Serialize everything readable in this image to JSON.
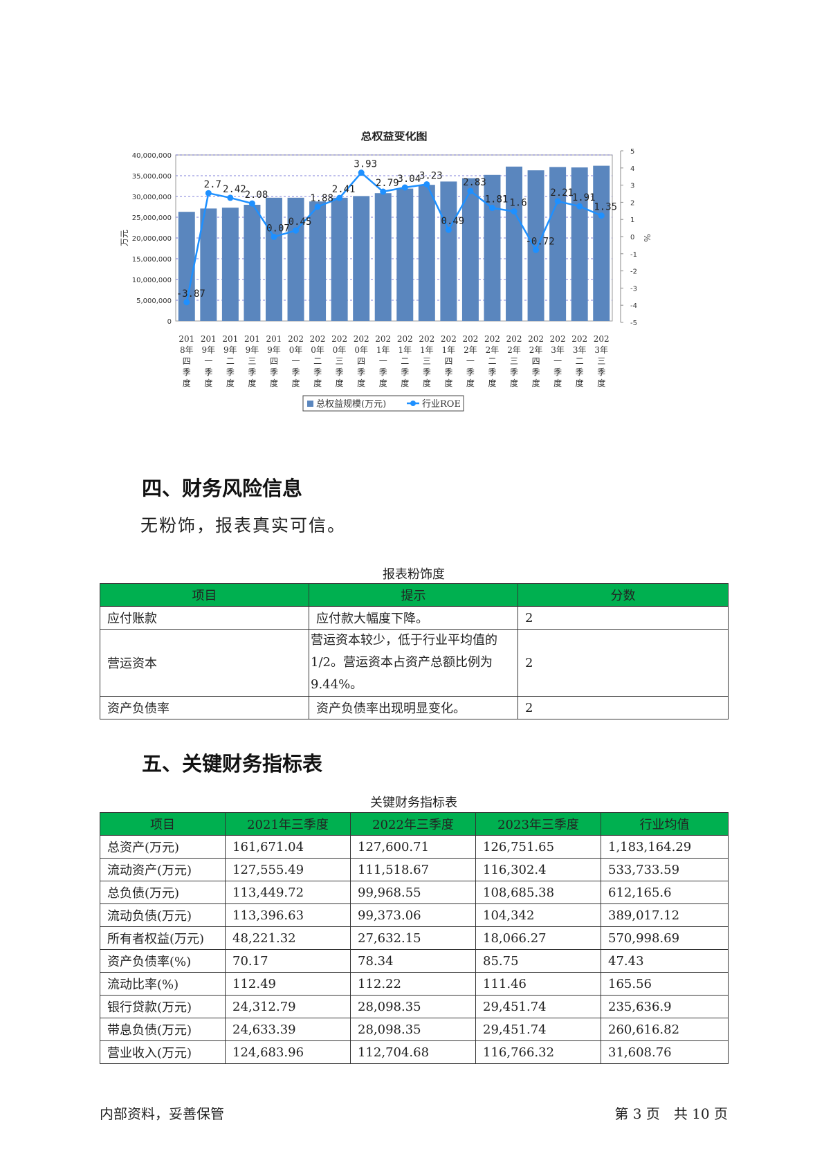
{
  "chart_data": {
    "type": "bar",
    "title": "总权益变化图",
    "ylabel": "万元",
    "y2label": "%",
    "ylim": [
      0,
      40000000
    ],
    "y2lim": [
      -5,
      5
    ],
    "yticks": [
      "0",
      "5,000,000",
      "10,000,000",
      "15,000,000",
      "20,000,000",
      "25,000,000",
      "30,000,000",
      "35,000,000",
      "40,000,000"
    ],
    "y2ticks": [
      "-5",
      "-4",
      "-3",
      "-2",
      "-1",
      "0",
      "1",
      "2",
      "3",
      "4",
      "5"
    ],
    "grid": true,
    "legend_position": "bottom",
    "categories": [
      [
        "201",
        "8年",
        "四",
        "季",
        "度"
      ],
      [
        "201",
        "9年",
        "一",
        "季",
        "度"
      ],
      [
        "201",
        "9年",
        "二",
        "季",
        "度"
      ],
      [
        "201",
        "9年",
        "三",
        "季",
        "度"
      ],
      [
        "201",
        "9年",
        "四",
        "季",
        "度"
      ],
      [
        "202",
        "0年",
        "一",
        "季",
        "度"
      ],
      [
        "202",
        "0年",
        "二",
        "季",
        "度"
      ],
      [
        "202",
        "0年",
        "三",
        "季",
        "度"
      ],
      [
        "202",
        "0年",
        "四",
        "季",
        "度"
      ],
      [
        "202",
        "1年",
        "一",
        "季",
        "度"
      ],
      [
        "202",
        "1年",
        "二",
        "季",
        "度"
      ],
      [
        "202",
        "1年",
        "三",
        "季",
        "度"
      ],
      [
        "202",
        "1年",
        "四",
        "季",
        "度"
      ],
      [
        "202",
        "2年",
        "一",
        "季",
        "度"
      ],
      [
        "202",
        "2年",
        "二",
        "季",
        "度"
      ],
      [
        "202",
        "2年",
        "三",
        "季",
        "度"
      ],
      [
        "202",
        "2年",
        "四",
        "季",
        "度"
      ],
      [
        "202",
        "3年",
        "一",
        "季",
        "度"
      ],
      [
        "202",
        "3年",
        "二",
        "季",
        "度"
      ],
      [
        "202",
        "3年",
        "三",
        "季",
        "度"
      ]
    ],
    "series": [
      {
        "name": "总权益规模(万元)",
        "type": "bar",
        "axis": "left",
        "color": "#5a86be",
        "values": [
          26300000,
          27100000,
          27300000,
          28000000,
          29700000,
          29700000,
          28800000,
          29700000,
          30100000,
          30800000,
          31900000,
          32800000,
          33600000,
          34400000,
          35200000,
          37200000,
          36300000,
          37100000,
          37000000,
          37400000
        ]
      },
      {
        "name": "行业ROE",
        "type": "line",
        "axis": "right",
        "color": "#1e90ff",
        "values": [
          -3.87,
          2.7,
          2.42,
          2.08,
          0.07,
          0.45,
          1.88,
          2.41,
          3.93,
          2.79,
          3.04,
          3.23,
          0.49,
          2.83,
          1.81,
          1.6,
          -0.72,
          2.21,
          1.91,
          1.35
        ],
        "labels": [
          "-3.87",
          "2.7",
          "2.42",
          "2.08",
          "0.07",
          "0.45",
          "1.88",
          "2.41",
          "3.93",
          "2.79",
          "3.04",
          "3.23",
          "0.49",
          "2.83",
          "1.81",
          "1.6",
          "-0.72",
          "2.21",
          "1.91",
          "1.35"
        ]
      }
    ]
  },
  "section4": {
    "heading": "四、财务风险信息",
    "paragraph": "无粉饰，报表真实可信。",
    "table_caption": "报表粉饰度",
    "headers": [
      "项目",
      "提示",
      "分数"
    ],
    "rows": [
      {
        "item": "应付账款",
        "hint": "应付款大幅度下降。",
        "score": "2"
      },
      {
        "item": "营运资本",
        "hint": "营运资本较少，低于行业平均值的1/2。营运资本占资产总额比例为9.44%。",
        "score": "2"
      },
      {
        "item": "资产负债率",
        "hint": "资产负债率出现明显变化。",
        "score": "2"
      }
    ]
  },
  "section5": {
    "heading": "五、关键财务指标表",
    "table_caption": "关键财务指标表",
    "headers": [
      "项目",
      "2021年三季度",
      "2022年三季度",
      "2023年三季度",
      "行业均值"
    ],
    "rows": [
      [
        "总资产(万元)",
        "161,671.04",
        "127,600.71",
        "126,751.65",
        "1,183,164.29"
      ],
      [
        "流动资产(万元)",
        "127,555.49",
        "111,518.67",
        "116,302.4",
        "533,733.59"
      ],
      [
        "总负债(万元)",
        "113,449.72",
        "99,968.55",
        "108,685.38",
        "612,165.6"
      ],
      [
        "流动负债(万元)",
        "113,396.63",
        "99,373.06",
        "104,342",
        "389,017.12"
      ],
      [
        "所有者权益(万元)",
        "48,221.32",
        "27,632.15",
        "18,066.27",
        "570,998.69"
      ],
      [
        "资产负债率(%)",
        "70.17",
        "78.34",
        "85.75",
        "47.43"
      ],
      [
        "流动比率(%)",
        "112.49",
        "112.22",
        "111.46",
        "165.56"
      ],
      [
        "银行贷款(万元)",
        "24,312.79",
        "28,098.35",
        "29,451.74",
        "235,636.9"
      ],
      [
        "带息负债(万元)",
        "24,633.39",
        "28,098.35",
        "29,451.74",
        "260,616.82"
      ],
      [
        "营业收入(万元)",
        "124,683.96",
        "112,704.68",
        "116,766.32",
        "31,608.76"
      ]
    ]
  },
  "footer": {
    "left": "内部资料，妥善保管",
    "page_label": "第 3 页　共 10 页"
  },
  "colors": {
    "table_header": "#00b050",
    "bar": "#5a86be",
    "line": "#1e90ff",
    "grid": "#5555cc"
  }
}
